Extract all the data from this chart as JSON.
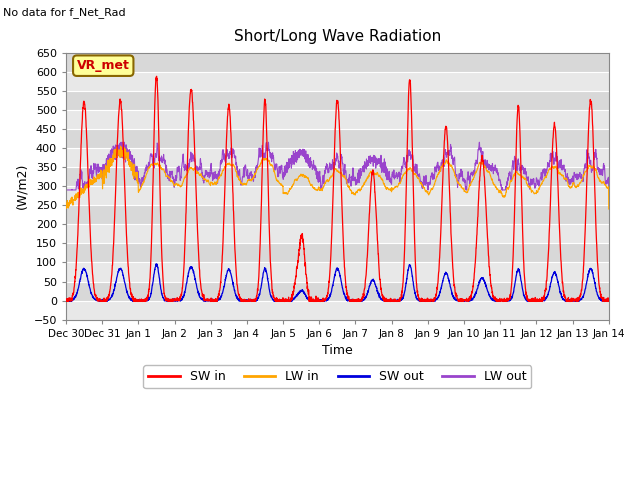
{
  "title": "Short/Long Wave Radiation",
  "xlabel": "Time",
  "ylabel": "(W/m2)",
  "top_left_text": "No data for f_Net_Rad",
  "station_label": "VR_met",
  "ylim": [
    -50,
    650
  ],
  "colors": {
    "SW_in": "#FF0000",
    "LW_in": "#FFA500",
    "SW_out": "#0000DD",
    "LW_out": "#9944CC"
  },
  "legend_labels": [
    "SW in",
    "LW in",
    "SW out",
    "LW out"
  ],
  "xticklabels": [
    "Dec 30",
    "Dec 31",
    "Jan 1",
    "Jan 2",
    "Jan 3",
    "Jan 4",
    "Jan 5",
    "Jan 6",
    "Jan 7",
    "Jan 8",
    "Jan 9",
    "Jan 10",
    "Jan 11",
    "Jan 12",
    "Jan 13",
    "Jan 14"
  ],
  "band_colors": [
    "#E8E8E8",
    "#D8D8D8"
  ],
  "figsize": [
    6.4,
    4.8
  ],
  "dpi": 100
}
